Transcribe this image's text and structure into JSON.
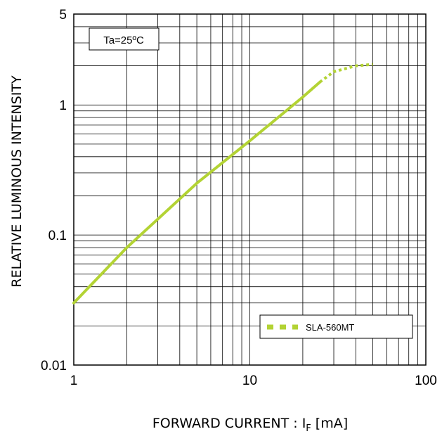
{
  "chart_data": {
    "type": "line",
    "x_scale": "log",
    "y_scale": "log",
    "xlim": [
      1,
      100
    ],
    "ylim": [
      0.01,
      5
    ],
    "x_ticks": [
      "1",
      "10",
      "100"
    ],
    "y_ticks": [
      "0.01",
      "0.1",
      "1",
      "5"
    ],
    "xlabel": "FORWARD CURRENT : I",
    "xlabel_sub": "F",
    "xlabel_unit": "[mA]",
    "ylabel": "RELATIVE LUMINOUS INTENSITY",
    "condition": "Ta=25ºC",
    "grid": true,
    "legend_position": "bottom-right",
    "series": [
      {
        "name": "SLA-560MT",
        "color": "#b3d334",
        "solid_points": [
          [
            1,
            0.03
          ],
          [
            2,
            0.08
          ],
          [
            5,
            0.25
          ],
          [
            10,
            0.53
          ],
          [
            20,
            1.15
          ],
          [
            25,
            1.5
          ]
        ],
        "dashed_points": [
          [
            25,
            1.5
          ],
          [
            30,
            1.8
          ],
          [
            40,
            2.0
          ],
          [
            50,
            2.05
          ]
        ]
      }
    ]
  }
}
